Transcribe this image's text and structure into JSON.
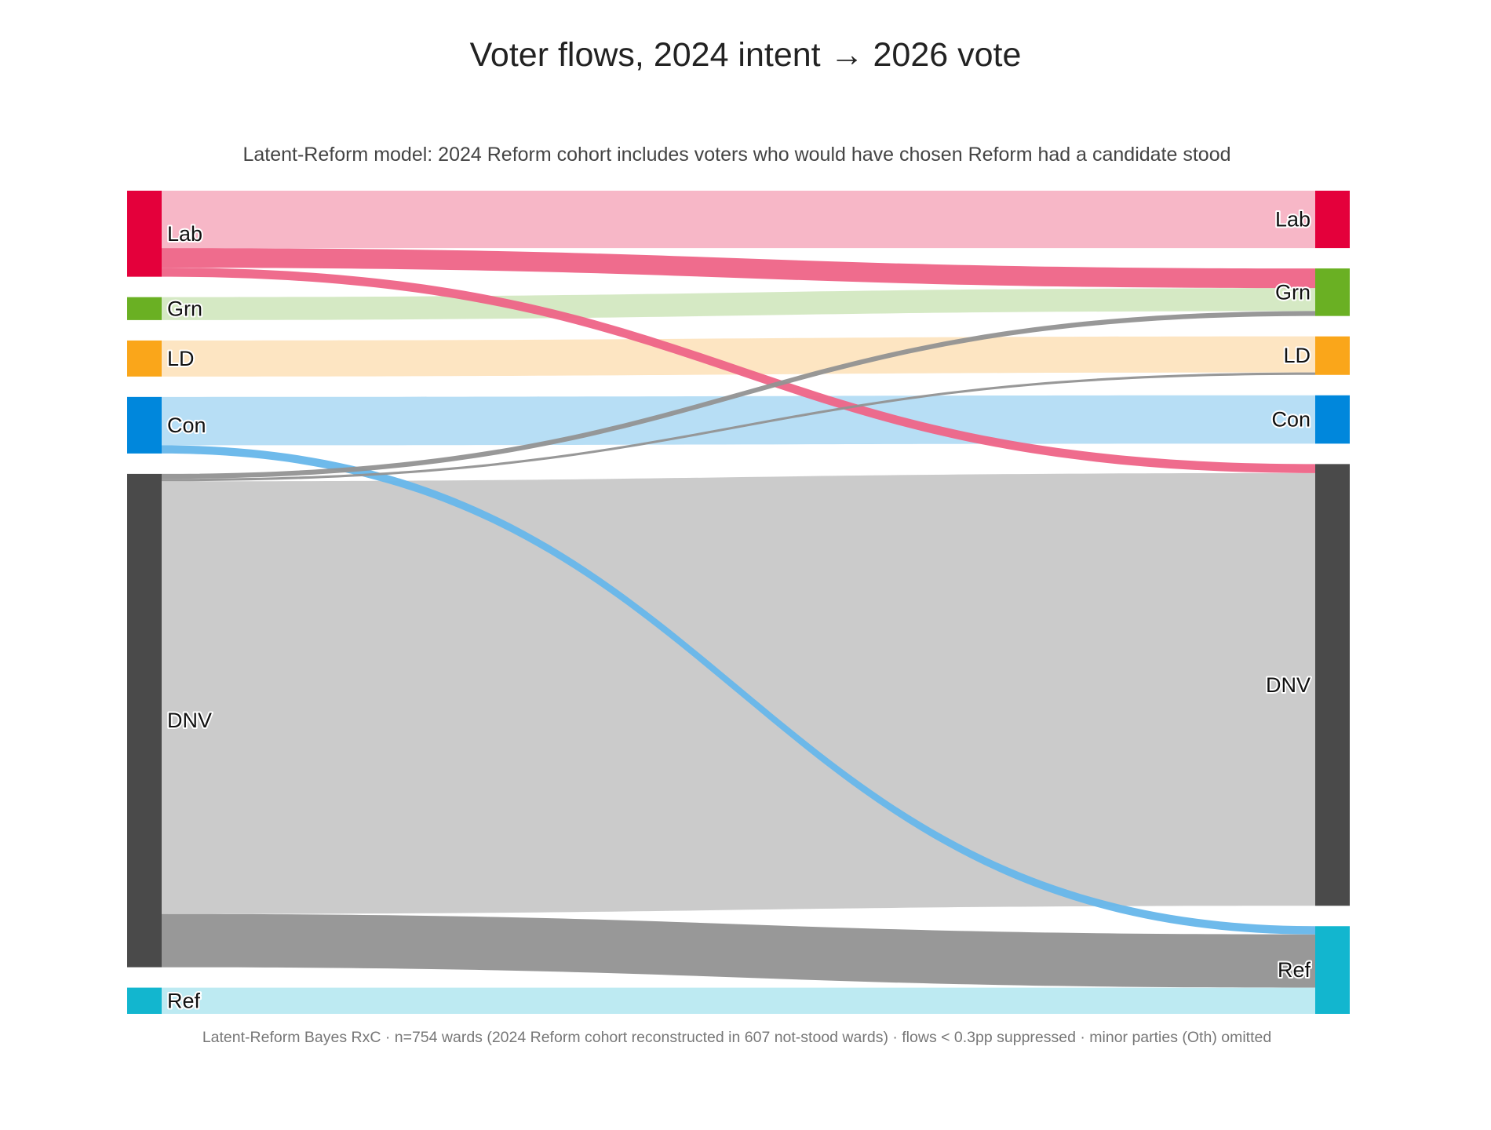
{
  "title": "Voter flows, 2024 intent → 2026 vote",
  "subtitle": "Latent-Reform model: 2024 Reform cohort includes voters who would have chosen Reform had a candidate stood",
  "footnote": "Latent-Reform Bayes RxC · n=754 wards (2024 Reform cohort reconstructed in 607 not-stood wards) · flows < 0.3pp suppressed · minor parties (Oth) omitted",
  "chart_data": {
    "type": "sankey",
    "unit": "pp",
    "source_nodes": [
      {
        "id": "Lab",
        "label": "Lab",
        "color": "#E4003B"
      },
      {
        "id": "Grn",
        "label": "Grn",
        "color": "#6AB023"
      },
      {
        "id": "LD",
        "label": "LD",
        "color": "#FAA61A"
      },
      {
        "id": "Con",
        "label": "Con",
        "color": "#0087DC"
      },
      {
        "id": "DNV",
        "label": "DNV",
        "color": "#4A4A4A"
      },
      {
        "id": "Ref",
        "label": "Ref",
        "color": "#12B6CF"
      }
    ],
    "target_nodes": [
      {
        "id": "Lab",
        "label": "Lab",
        "color": "#E4003B"
      },
      {
        "id": "Grn",
        "label": "Grn",
        "color": "#6AB023"
      },
      {
        "id": "LD",
        "label": "LD",
        "color": "#FAA61A"
      },
      {
        "id": "Con",
        "label": "Con",
        "color": "#0087DC"
      },
      {
        "id": "DNV",
        "label": "DNV",
        "color": "#4A4A4A"
      },
      {
        "id": "Ref",
        "label": "Ref",
        "color": "#12B6CF"
      }
    ],
    "links": [
      {
        "source": "Lab",
        "target": "Lab",
        "value": 7.0,
        "color": "#F7B3C4"
      },
      {
        "source": "Lab",
        "target": "Grn",
        "value": 2.4,
        "color": "#EE6487"
      },
      {
        "source": "Lab",
        "target": "DNV",
        "value": 1.1,
        "color": "#EE6487"
      },
      {
        "source": "Grn",
        "target": "Grn",
        "value": 2.8,
        "color": "#D3E8C1"
      },
      {
        "source": "LD",
        "target": "LD",
        "value": 4.4,
        "color": "#FDE4BF"
      },
      {
        "source": "Con",
        "target": "Con",
        "value": 5.9,
        "color": "#B3DCF4"
      },
      {
        "source": "Con",
        "target": "Ref",
        "value": 1.0,
        "color": "#66B6EA"
      },
      {
        "source": "DNV",
        "target": "Grn",
        "value": 0.6,
        "color": "#929292"
      },
      {
        "source": "DNV",
        "target": "LD",
        "value": 0.3,
        "color": "#929292"
      },
      {
        "source": "DNV",
        "target": "DNV",
        "value": 52.8,
        "color": "#C8C8C8"
      },
      {
        "source": "DNV",
        "target": "Ref",
        "value": 6.5,
        "color": "#929292"
      },
      {
        "source": "Ref",
        "target": "Ref",
        "value": 3.2,
        "color": "#B9E9F1"
      }
    ],
    "source_order": [
      "Lab",
      "Grn",
      "LD",
      "Con",
      "DNV",
      "Ref"
    ],
    "target_order": [
      "Lab",
      "Grn",
      "LD",
      "Con",
      "DNV",
      "Ref"
    ]
  }
}
